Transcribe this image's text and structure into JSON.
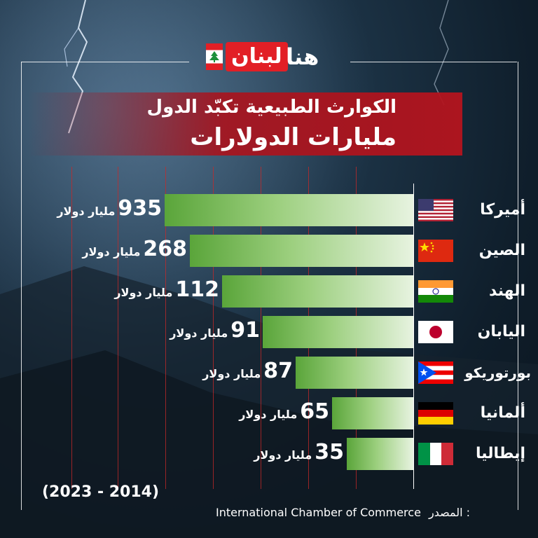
{
  "brand": {
    "part1": "لبنان",
    "part2": "هنا"
  },
  "title": {
    "line1": "الكوارث الطبيعية تكبّد الدول",
    "line2": "مليارات الدولارات"
  },
  "period": "(2023 - 2014)",
  "source": {
    "prefix": "المصدر :",
    "name": "International Chamber of Commerce"
  },
  "unit": "مليار دولار",
  "colors": {
    "accent_red": "#e21f26",
    "bar_green": "#5aa53a"
  },
  "chart_data": {
    "type": "bar",
    "orientation": "horizontal",
    "categories": [
      "أميركا",
      "الصين",
      "الهند",
      "اليابان",
      "بورتوريكو",
      "ألمانيا",
      "إيطاليا"
    ],
    "values": [
      935,
      268,
      112,
      91,
      87,
      65,
      35
    ],
    "value_unit": "مليار دولار",
    "flags": [
      "usa-flag",
      "china-flag",
      "india-flag",
      "japan-flag",
      "puerto-rico-flag",
      "germany-flag",
      "italy-flag"
    ]
  }
}
